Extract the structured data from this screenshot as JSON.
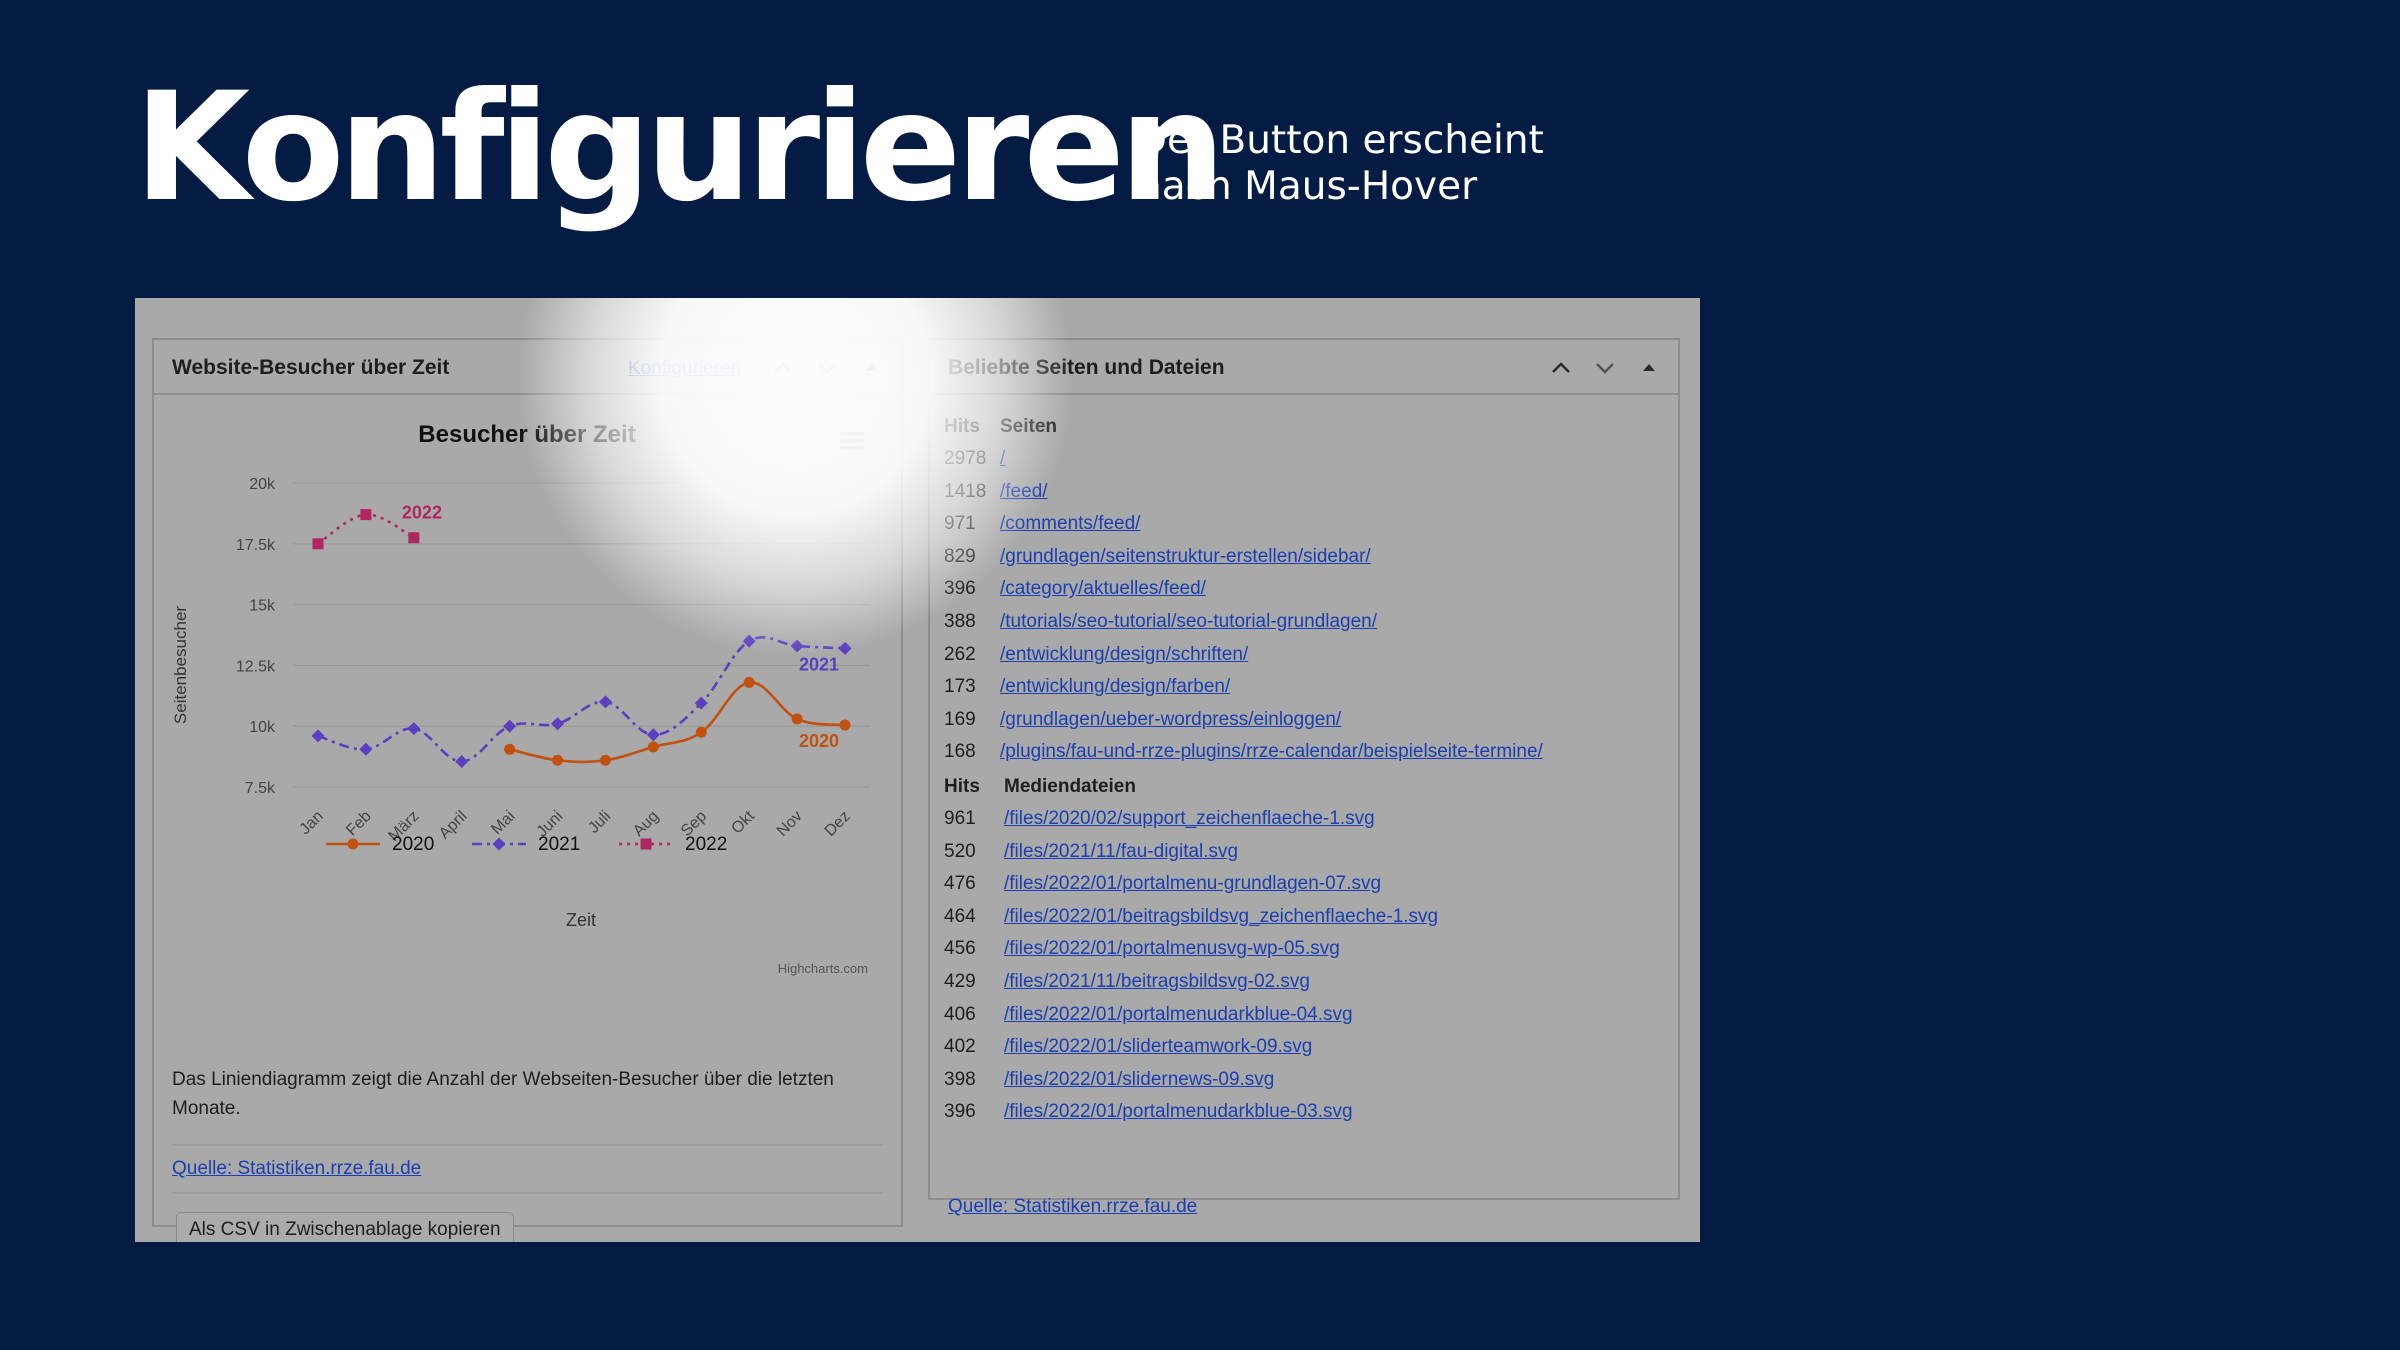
{
  "hero": {
    "title": "Konfigurieren",
    "note_line1": "Der Button erscheint",
    "note_line2": "nach Maus-Hover"
  },
  "left_panel": {
    "title": "Website-Besucher über Zeit",
    "configure_label": "Konfigurieren",
    "description": "Das Liniendiagramm zeigt die Anzahl der Webseiten-Besucher über die letzten Monate.",
    "source_label": "Quelle: Statistiken.rrze.fau.de",
    "csv_button_label": "Als CSV in Zwischenablage kopieren",
    "controls": [
      "chevron-up-icon",
      "chevron-down-icon",
      "triangle-up-icon"
    ]
  },
  "right_panel": {
    "title": "Beliebte Seiten und Dateien",
    "pages_header": {
      "hits": "Hits",
      "label": "Seiten"
    },
    "pages": [
      {
        "hits": "2978",
        "path": "/"
      },
      {
        "hits": "1418",
        "path": "/feed/"
      },
      {
        "hits": "971",
        "path": "/comments/feed/"
      },
      {
        "hits": "829",
        "path": "/grundlagen/seitenstruktur-erstellen/sidebar/"
      },
      {
        "hits": "396",
        "path": "/category/aktuelles/feed/"
      },
      {
        "hits": "388",
        "path": "/tutorials/seo-tutorial/seo-tutorial-grundlagen/"
      },
      {
        "hits": "262",
        "path": "/entwicklung/design/schriften/"
      },
      {
        "hits": "173",
        "path": "/entwicklung/design/farben/"
      },
      {
        "hits": "169",
        "path": "/grundlagen/ueber-wordpress/einloggen/"
      },
      {
        "hits": "168",
        "path": "/plugins/fau-und-rrze-plugins/rrze-calendar/beispielseite-termine/"
      }
    ],
    "media_header": {
      "hits": "Hits",
      "label": "Mediendateien"
    },
    "media": [
      {
        "hits": "961",
        "path": "/files/2020/02/support_zeichenflaeche-1.svg"
      },
      {
        "hits": "520",
        "path": "/files/2021/11/fau-digital.svg"
      },
      {
        "hits": "476",
        "path": "/files/2022/01/portalmenu-grundlagen-07.svg"
      },
      {
        "hits": "464",
        "path": "/files/2022/01/beitragsbildsvg_zeichenflaeche-1.svg"
      },
      {
        "hits": "456",
        "path": "/files/2022/01/portalmenusvg-wp-05.svg"
      },
      {
        "hits": "429",
        "path": "/files/2021/11/beitragsbildsvg-02.svg"
      },
      {
        "hits": "406",
        "path": "/files/2022/01/portalmenudarkblue-04.svg"
      },
      {
        "hits": "402",
        "path": "/files/2022/01/sliderteamwork-09.svg"
      },
      {
        "hits": "398",
        "path": "/files/2022/01/slidernews-09.svg"
      },
      {
        "hits": "396",
        "path": "/files/2022/01/portalmenudarkblue-03.svg"
      }
    ],
    "source_label": "Quelle: Statistiken.rrze.fau.de"
  },
  "chart_data": {
    "type": "line",
    "title": "Besucher über Zeit",
    "xlabel": "Zeit",
    "ylabel": "Seitenbesucher",
    "credit": "Highcharts.com",
    "categories": [
      "Jan",
      "Feb",
      "März",
      "April",
      "Mai",
      "Juni",
      "Juli",
      "Aug",
      "Sep",
      "Okt",
      "Nov",
      "Dez"
    ],
    "ylim": [
      7500,
      20000
    ],
    "yticks": [
      7500,
      10000,
      12500,
      15000,
      17500,
      20000
    ],
    "ytick_labels": [
      "7.5k",
      "10k",
      "12.5k",
      "15k",
      "17.5k",
      "20k"
    ],
    "grid": true,
    "legend_position": "bottom-center",
    "series": [
      {
        "name": "2020",
        "color": "#c0510f",
        "dash": "solid",
        "marker": "circle",
        "values": [
          null,
          null,
          null,
          null,
          9050,
          8600,
          8600,
          9150,
          9750,
          11800,
          10300,
          10050
        ],
        "end_label": "2020"
      },
      {
        "name": "2021",
        "color": "#5a3fc0",
        "dash": "dashdot",
        "marker": "diamond",
        "values": [
          9600,
          9050,
          9900,
          8550,
          10000,
          10100,
          11000,
          9650,
          10950,
          13500,
          13300,
          13200
        ],
        "end_label": "2021"
      },
      {
        "name": "2022",
        "color": "#b0265f",
        "dash": "dotted",
        "marker": "square",
        "values": [
          17500,
          18700,
          17750,
          null,
          null,
          null,
          null,
          null,
          null,
          null,
          null,
          null
        ],
        "end_label": "2022"
      }
    ]
  }
}
